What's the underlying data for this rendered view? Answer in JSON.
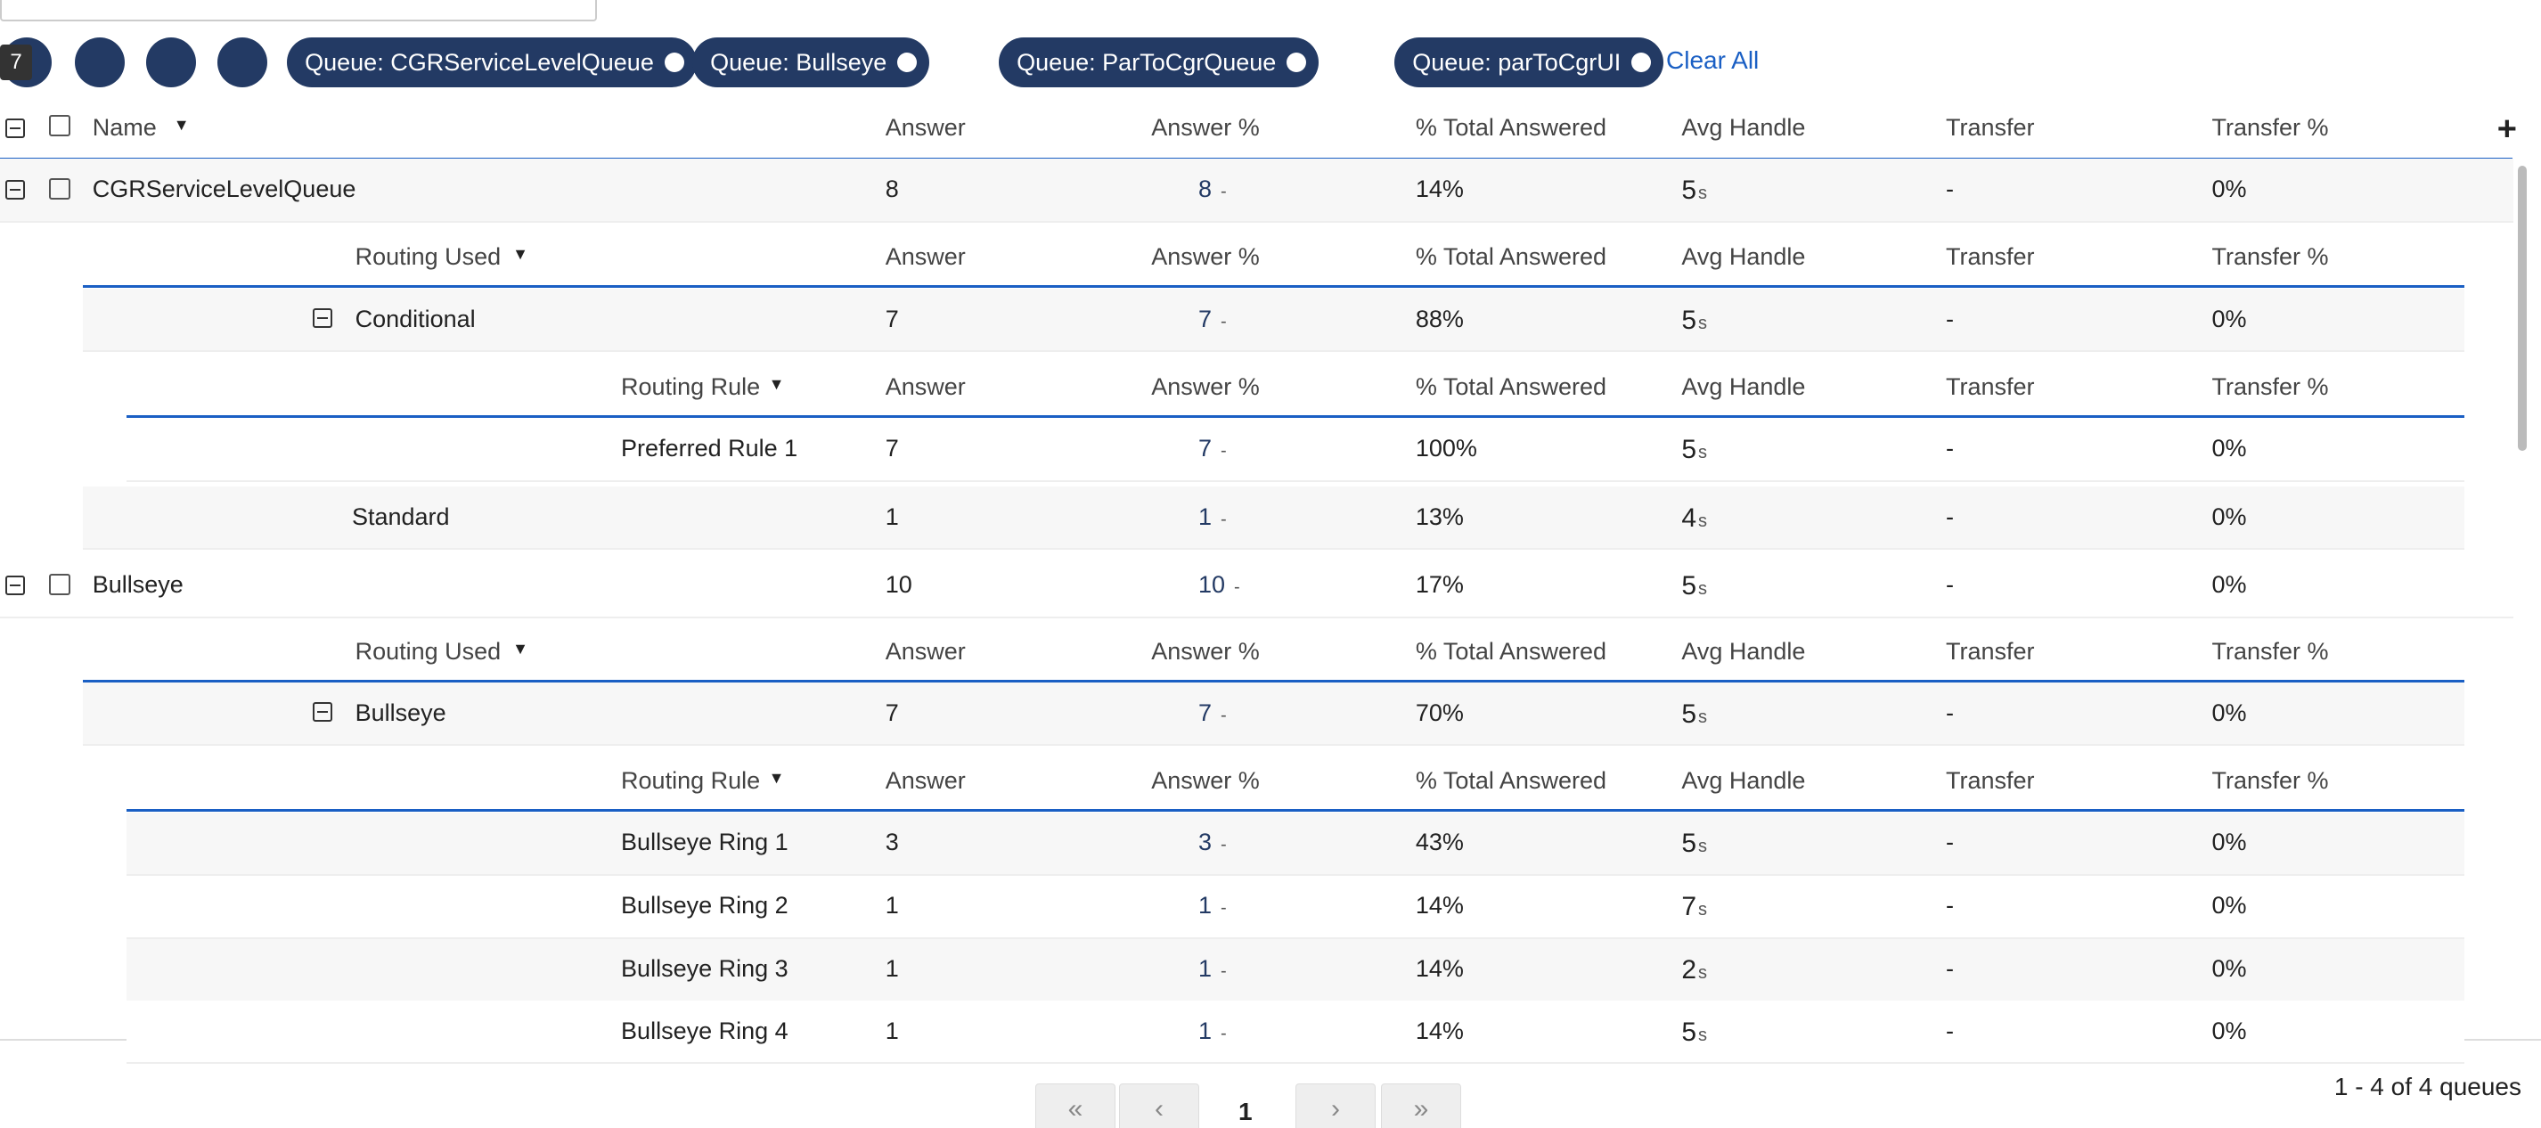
{
  "toolbar": {
    "badge": "7",
    "chips": [
      "Queue: CGRServiceLevelQueue",
      "Queue: Bullseye",
      "Queue: ParToCgrQueue",
      "Queue: parToCgrUI"
    ],
    "clear_all": "Clear All"
  },
  "table": {
    "columns": [
      "Name",
      "Answer",
      "Answer %",
      "% Total Answered",
      "Avg Handle",
      "Transfer",
      "Transfer %"
    ],
    "avg_unit": "s",
    "trend_mark": "-",
    "rows": [
      {
        "kind": "queue",
        "shaded": true,
        "cells": [
          "CGRServiceLevelQueue",
          "8",
          "8",
          "14%",
          "5",
          "-",
          "0%"
        ]
      },
      {
        "kind": "subheader",
        "level": 1,
        "label": "Routing Used"
      },
      {
        "kind": "group",
        "expand": true,
        "shaded": true,
        "cells": [
          "Conditional",
          "7",
          "7",
          "88%",
          "5",
          "-",
          "0%"
        ]
      },
      {
        "kind": "subheader",
        "level": 2,
        "label": "Routing Rule"
      },
      {
        "kind": "leaf",
        "shaded": false,
        "cells": [
          "Preferred Rule 1",
          "7",
          "7",
          "100%",
          "5",
          "-",
          "0%"
        ]
      },
      {
        "kind": "group",
        "expand": false,
        "shaded": true,
        "cells": [
          "Standard",
          "1",
          "1",
          "13%",
          "4",
          "-",
          "0%"
        ]
      },
      {
        "kind": "queue",
        "shaded": false,
        "cells": [
          "Bullseye",
          "10",
          "10",
          "17%",
          "5",
          "-",
          "0%"
        ]
      },
      {
        "kind": "subheader",
        "level": 1,
        "label": "Routing Used"
      },
      {
        "kind": "group",
        "expand": true,
        "shaded": true,
        "cells": [
          "Bullseye",
          "7",
          "7",
          "70%",
          "5",
          "-",
          "0%"
        ]
      },
      {
        "kind": "subheader",
        "level": 2,
        "label": "Routing Rule"
      },
      {
        "kind": "leaf",
        "shaded": true,
        "cells": [
          "Bullseye Ring 1",
          "3",
          "3",
          "43%",
          "5",
          "-",
          "0%"
        ]
      },
      {
        "kind": "leaf",
        "shaded": false,
        "cells": [
          "Bullseye Ring 2",
          "1",
          "1",
          "14%",
          "7",
          "-",
          "0%"
        ]
      },
      {
        "kind": "leaf",
        "shaded": true,
        "cells": [
          "Bullseye Ring 3",
          "1",
          "1",
          "14%",
          "2",
          "-",
          "0%"
        ]
      },
      {
        "kind": "leaf",
        "shaded": false,
        "cells": [
          "Bullseye Ring 4",
          "1",
          "1",
          "14%",
          "5",
          "-",
          "0%"
        ]
      }
    ]
  },
  "pagination": {
    "first": "«",
    "prev": "‹",
    "page": "1",
    "next": "›",
    "last": "»",
    "summary": "1 - 4 of 4 queues"
  }
}
